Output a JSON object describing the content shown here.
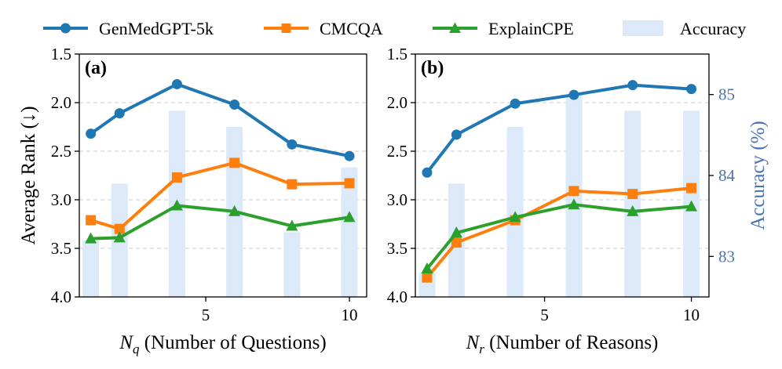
{
  "legend": {
    "items": [
      {
        "label": "GenMedGPT-5k",
        "kind": "line",
        "marker": "circle",
        "color": "#1f77b4"
      },
      {
        "label": "CMCQA",
        "kind": "line",
        "marker": "square",
        "color": "#ff7f0e"
      },
      {
        "label": "ExplainCPE",
        "kind": "line",
        "marker": "triangle",
        "color": "#2ca02c"
      },
      {
        "label": "Accuracy",
        "kind": "bar",
        "color": "#dbe9f9"
      }
    ]
  },
  "chart_data": [
    {
      "type": "line+bar",
      "panel_label": "(a)",
      "xlabel_var": "N",
      "xlabel_sub": "q",
      "xlabel_rest": " (Number of Questions)",
      "ylabel": "Average Rank (↓)",
      "ylim": [
        1.5,
        4.0
      ],
      "y_inverted": true,
      "yticks": [
        1.5,
        2.0,
        2.5,
        3.0,
        3.5,
        4.0
      ],
      "ytick_labels": [
        "1.5",
        "2.0",
        "2.5",
        "3.0",
        "3.5",
        "4.0"
      ],
      "xlim": [
        0.6,
        10.6
      ],
      "xticks": [
        5,
        10
      ],
      "xtick_labels": [
        "5",
        "10"
      ],
      "grid": "horizontal dashed",
      "x": [
        1,
        2,
        4,
        6,
        8,
        10
      ],
      "series": [
        {
          "name": "GenMedGPT-5k",
          "values": [
            2.32,
            2.11,
            1.81,
            2.02,
            2.43,
            2.55
          ]
        },
        {
          "name": "CMCQA",
          "values": [
            3.21,
            3.3,
            2.77,
            2.62,
            2.84,
            2.83
          ]
        },
        {
          "name": "ExplainCPE",
          "values": [
            3.4,
            3.39,
            3.06,
            3.12,
            3.27,
            3.18
          ]
        }
      ],
      "accuracy": {
        "name": "Accuracy",
        "values": [
          83.2,
          83.9,
          84.8,
          84.6,
          83.3,
          84.1
        ]
      },
      "acc_ylim": [
        82.5,
        85.5
      ]
    },
    {
      "type": "line+bar",
      "panel_label": "(b)",
      "xlabel_var": "N",
      "xlabel_sub": "r",
      "xlabel_rest": " (Number of Reasons)",
      "ylim": [
        1.5,
        4.0
      ],
      "y_inverted": true,
      "yticks": [
        1.5,
        2.0,
        2.5,
        3.0,
        3.5,
        4.0
      ],
      "ytick_labels": [
        "1.5",
        "2.0",
        "2.5",
        "3.0",
        "3.5",
        "4.0"
      ],
      "xlim": [
        0.6,
        10.6
      ],
      "xticks": [
        5,
        10
      ],
      "xtick_labels": [
        "5",
        "10"
      ],
      "grid": "horizontal dashed",
      "x": [
        1,
        2,
        4,
        6,
        8,
        10
      ],
      "series": [
        {
          "name": "GenMedGPT-5k",
          "values": [
            2.72,
            2.33,
            2.01,
            1.92,
            1.82,
            1.86
          ]
        },
        {
          "name": "CMCQA",
          "values": [
            3.8,
            3.44,
            3.21,
            2.91,
            2.94,
            2.88
          ]
        },
        {
          "name": "ExplainCPE",
          "values": [
            3.71,
            3.34,
            3.18,
            3.05,
            3.12,
            3.07
          ]
        }
      ],
      "accuracy": {
        "name": "Accuracy",
        "values": [
          82.8,
          83.9,
          84.6,
          85.0,
          84.8,
          84.8
        ]
      },
      "acc_ylim": [
        82.5,
        85.5
      ],
      "acc_axis": {
        "label": "Accuracy (%)",
        "ticks": [
          83,
          84,
          85
        ],
        "tick_labels": [
          "83",
          "84",
          "85"
        ],
        "color": "#4c72b0"
      }
    }
  ]
}
